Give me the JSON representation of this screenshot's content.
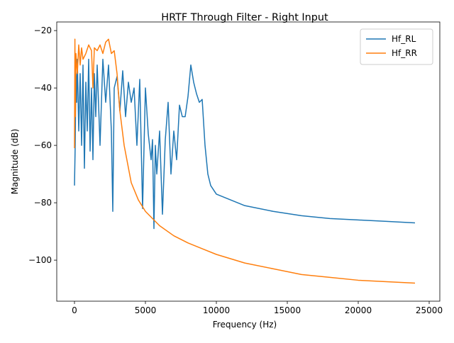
{
  "chart_data": {
    "type": "line",
    "title": "HRTF Through Filter - Right Input",
    "xlabel": "Frequency (Hz)",
    "ylabel": "Magnitude (dB)",
    "xlim": [
      -1250,
      25750
    ],
    "ylim": [
      -114.3,
      -17
    ],
    "xticks": [
      0,
      5000,
      10000,
      15000,
      20000,
      25000
    ],
    "yticks": [
      {
        "value": -100,
        "label": "−100"
      },
      {
        "value": -80,
        "label": "−80"
      },
      {
        "value": -60,
        "label": "−60"
      },
      {
        "value": -40,
        "label": "−40"
      },
      {
        "value": -20,
        "label": "−20"
      }
    ],
    "legend": "upper right",
    "series": [
      {
        "name": "Hf_RL",
        "color": "#1f77b4",
        "x": [
          0,
          50,
          100,
          150,
          200,
          300,
          400,
          500,
          600,
          700,
          800,
          900,
          1000,
          1100,
          1200,
          1300,
          1400,
          1500,
          1600,
          1800,
          2000,
          2200,
          2400,
          2600,
          2700,
          2800,
          3000,
          3200,
          3400,
          3600,
          3800,
          4000,
          4200,
          4400,
          4600,
          4800,
          5000,
          5200,
          5400,
          5500,
          5600,
          5700,
          5800,
          6000,
          6200,
          6400,
          6600,
          6800,
          7000,
          7200,
          7400,
          7600,
          7800,
          8000,
          8200,
          8400,
          8600,
          8800,
          9000,
          9200,
          9400,
          9600,
          10000,
          11000,
          12000,
          14000,
          16000,
          18000,
          20000,
          22000,
          24000
        ],
        "values": [
          -74,
          -60,
          -35,
          -45,
          -30,
          -55,
          -35,
          -60,
          -32,
          -68,
          -38,
          -55,
          -30,
          -62,
          -40,
          -65,
          -35,
          -50,
          -32,
          -60,
          -30,
          -45,
          -32,
          -55,
          -83,
          -40,
          -36,
          -48,
          -34,
          -50,
          -38,
          -45,
          -40,
          -60,
          -37,
          -82,
          -40,
          -56,
          -65,
          -58,
          -89,
          -60,
          -70,
          -55,
          -84,
          -58,
          -45,
          -70,
          -55,
          -65,
          -46,
          -50,
          -50,
          -43,
          -32,
          -38,
          -42,
          -45,
          -44,
          -60,
          -70,
          -74,
          -77,
          -79,
          -81,
          -83,
          -84.5,
          -85.5,
          -86,
          -86.5,
          -87
        ]
      },
      {
        "name": "Hf_RR",
        "color": "#ff7f0e",
        "x": [
          0,
          30,
          60,
          100,
          200,
          300,
          400,
          500,
          600,
          800,
          1000,
          1200,
          1300,
          1400,
          1600,
          1800,
          2000,
          2200,
          2400,
          2600,
          2800,
          3000,
          3200,
          3500,
          4000,
          4500,
          5000,
          6000,
          7000,
          8000,
          9000,
          10000,
          12000,
          14000,
          16000,
          18000,
          20000,
          22000,
          24000
        ],
        "values": [
          -61,
          -23,
          -50,
          -28,
          -35,
          -25,
          -32,
          -26,
          -30,
          -28,
          -25,
          -27,
          -40,
          -26,
          -27,
          -25,
          -28,
          -24,
          -23,
          -28,
          -27,
          -35,
          -48,
          -60,
          -73,
          -79,
          -83,
          -88,
          -91.5,
          -94,
          -96,
          -98,
          -101,
          -103,
          -105,
          -106,
          -107,
          -107.5,
          -108
        ]
      }
    ]
  }
}
